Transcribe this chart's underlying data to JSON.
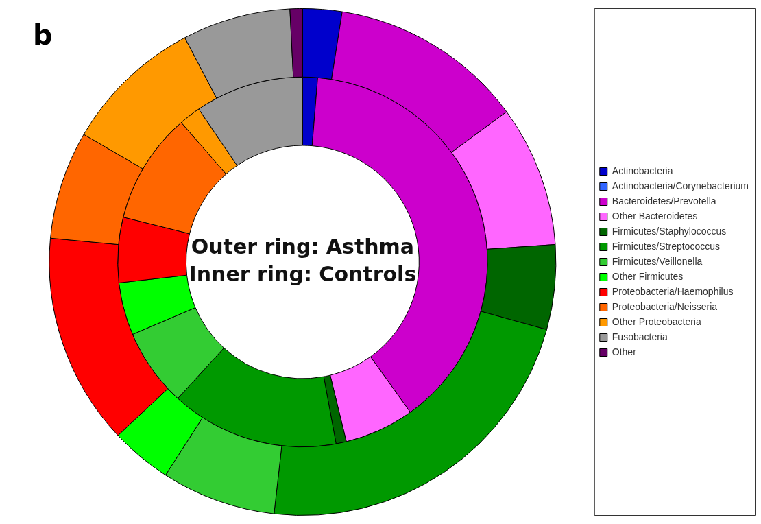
{
  "chart_data": {
    "type": "donut",
    "title": "b",
    "categories": [
      "Actinobacteria",
      "Actinobacteria/Corynebacterium",
      "Bacteroidetes/Prevotella",
      "Other Bacteroidetes",
      "Firmicutes/Staphylococcus",
      "Firmicutes/Streptococcus",
      "Firmicutes/Veillonella",
      "Other Firmicutes",
      "Proteobacteria/Haemophilus",
      "Proteobacteria/Neisseria",
      "Other Proteobacteria",
      "Fusobacteria",
      "Other"
    ],
    "colors": [
      "#0000cc",
      "#3366ff",
      "#cc00cc",
      "#ff66ff",
      "#006600",
      "#009900",
      "#33cc33",
      "#00ff00",
      "#ff0000",
      "#ff6600",
      "#ff9900",
      "#999999",
      "#660066"
    ],
    "series": [
      {
        "values": [
          2.5,
          0,
          12.4,
          9,
          5.4,
          22.5,
          7.3,
          3.9,
          13.5,
          6.9,
          8.9,
          6.9,
          0.8
        ]
      },
      {
        "values": [
          1.3,
          0,
          38.8,
          6.1,
          0.9,
          14.7,
          6.8,
          4.6,
          5.7,
          9.7,
          1.9,
          9.5,
          0
        ]
      }
    ],
    "annotations": [
      "Outer ring: Asthma",
      "Inner ring: Controls"
    ],
    "legend": "right"
  }
}
